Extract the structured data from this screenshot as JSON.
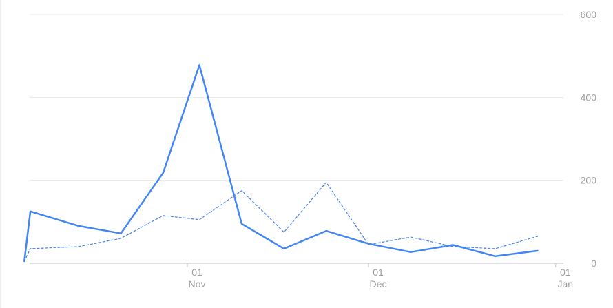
{
  "chart_data": {
    "type": "line",
    "title": "",
    "xlabel": "",
    "ylabel": "",
    "ylim": [
      0,
      600
    ],
    "y_ticks": [
      "600",
      "400",
      "200",
      "0"
    ],
    "y_tick_values": [
      600,
      400,
      200,
      0
    ],
    "x_ticks": [
      {
        "date": "2021-11-01",
        "day": "01",
        "month": "Nov"
      },
      {
        "date": "2021-12-01",
        "day": "01",
        "month": "Dec"
      },
      {
        "date": "2022-01-01",
        "day": "01",
        "month": "Jan"
      }
    ],
    "grid": true,
    "y_axis_position": "right",
    "series": [
      {
        "style": "solid",
        "color": "#4285f4",
        "x": [
          "2021-10-05",
          "2021-10-06",
          "2021-10-14",
          "2021-10-21",
          "2021-10-28",
          "2021-11-03",
          "2021-11-10",
          "2021-11-17",
          "2021-11-24",
          "2021-12-01",
          "2021-12-08",
          "2021-12-15",
          "2021-12-22",
          "2021-12-29"
        ],
        "values": [
          5,
          125,
          90,
          72,
          218,
          478,
          95,
          35,
          78,
          47,
          27,
          44,
          17,
          30
        ]
      },
      {
        "style": "dashed",
        "color": "#4285f4",
        "x": [
          "2021-10-05",
          "2021-10-06",
          "2021-10-14",
          "2021-10-21",
          "2021-10-28",
          "2021-11-03",
          "2021-11-10",
          "2021-11-17",
          "2021-11-24",
          "2021-12-01",
          "2021-12-08",
          "2021-12-15",
          "2021-12-22",
          "2021-12-29"
        ],
        "values": [
          5,
          35,
          40,
          60,
          115,
          105,
          175,
          75,
          195,
          45,
          63,
          40,
          35,
          65
        ]
      }
    ]
  }
}
